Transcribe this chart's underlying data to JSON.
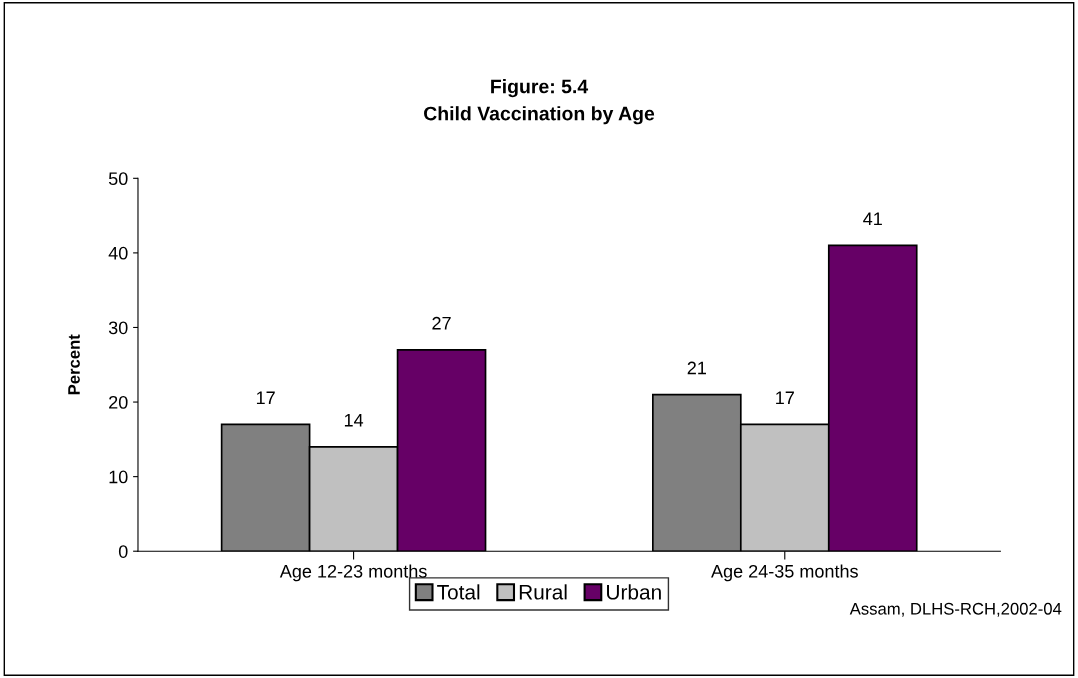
{
  "chart_data": {
    "type": "bar",
    "title": "Figure: 5.4",
    "subtitle": "Child Vaccination by Age",
    "ylabel": "Percent",
    "categories": [
      "Age 12-23 months",
      "Age 24-35 months"
    ],
    "series": [
      {
        "name": "Total",
        "color": "#808080",
        "values": [
          17,
          21
        ]
      },
      {
        "name": "Rural",
        "color": "#c0c0c0",
        "values": [
          14,
          17
        ]
      },
      {
        "name": "Urban",
        "color": "#660066",
        "values": [
          27,
          41
        ]
      }
    ],
    "ylim": [
      0,
      50
    ],
    "yticks": [
      0,
      10,
      20,
      30,
      40,
      50
    ],
    "grid": false,
    "legend": "bottom",
    "data_labels": true,
    "annotations": [
      "Assam, DLHS-RCH,2002-04"
    ]
  }
}
